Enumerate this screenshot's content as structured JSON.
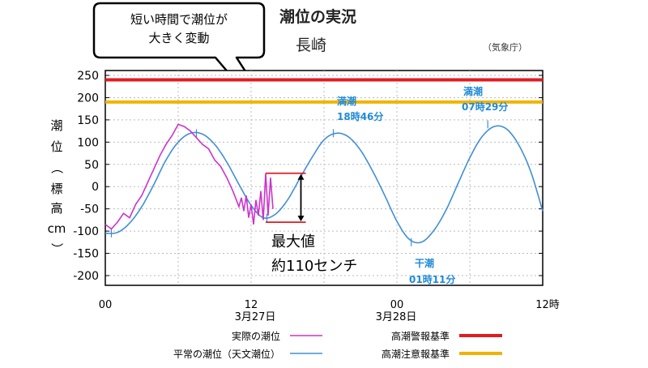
{
  "colors": {
    "actual": "#cc33cc",
    "normal": "#3f8fd6",
    "warning": "#e11b22",
    "caution": "#f0b400",
    "annot_blue": "#1f8ad6",
    "range_red": "#e11b22"
  },
  "callout": {
    "line1": "短い時間で潮位が",
    "line2": "大きく変動"
  },
  "title": "潮位の実況",
  "subtitle": "長崎",
  "source": "（気象庁）",
  "ylabel_chars": [
    "潮",
    "位",
    "（",
    "標",
    "高",
    "cm",
    "）"
  ],
  "x_tick_labels": [
    "00",
    "12",
    "00",
    "12時"
  ],
  "date_labels": [
    "3月27日",
    "3月28日"
  ],
  "annotations": {
    "high1_a": "満潮",
    "high1_b": "18時46分",
    "high2_a": "満潮",
    "high2_b": "07時29分",
    "low_a": "干潮",
    "low_b": "01時11分",
    "max_a": "最大値",
    "max_b": "約110センチ"
  },
  "legend": {
    "actual": "実際の潮位",
    "normal": "平常の潮位（天文潮位）",
    "warning": "高潮警報基準",
    "caution": "高潮注意報基準"
  },
  "chart_data": {
    "type": "line",
    "title": "潮位の実況",
    "subtitle": "長崎",
    "ylabel": "潮位（標高cm）",
    "xlim_hours": [
      0,
      36
    ],
    "ylim": [
      -200,
      250
    ],
    "y_ticks": [
      -200,
      -150,
      -100,
      -50,
      0,
      50,
      100,
      150,
      200,
      250
    ],
    "x_tick_hours": [
      0,
      12,
      24,
      36
    ],
    "grid": true,
    "thresholds": [
      {
        "name": "高潮警報基準",
        "value": 240
      },
      {
        "name": "高潮注意報基準",
        "value": 190
      }
    ],
    "series": [
      {
        "name": "平常の潮位（天文潮位）",
        "x": [
          0,
          1,
          2,
          3,
          4,
          5,
          6,
          7,
          8,
          9,
          10,
          11,
          12,
          13,
          14,
          15,
          16,
          17,
          18,
          19,
          20,
          21,
          22,
          23,
          24,
          25,
          26,
          27,
          28,
          29,
          30,
          31,
          32,
          33,
          34,
          35,
          36
        ],
        "values": [
          -105,
          -103,
          -82,
          -45,
          5,
          60,
          100,
          120,
          118,
          95,
          55,
          5,
          -42,
          -70,
          -62,
          -30,
          18,
          65,
          105,
          120,
          112,
          82,
          35,
          -20,
          -78,
          -118,
          -125,
          -100,
          -55,
          5,
          65,
          112,
          135,
          130,
          95,
          35,
          -55
        ]
      },
      {
        "name": "実際の潮位",
        "x": [
          0,
          0.5,
          1,
          1.5,
          2,
          2.5,
          3,
          3.5,
          4,
          4.5,
          5,
          5.5,
          6,
          6.5,
          7,
          7.5,
          8,
          8.5,
          9,
          9.5,
          10,
          10.5,
          11,
          11.2,
          11.4,
          11.6,
          11.8,
          12.0,
          12.2,
          12.4,
          12.6,
          12.8,
          13.0,
          13.2,
          13.4,
          13.6,
          13.8
        ],
        "values": [
          -85,
          -95,
          -80,
          -60,
          -70,
          -40,
          -20,
          10,
          40,
          70,
          95,
          115,
          140,
          135,
          125,
          110,
          95,
          85,
          60,
          45,
          20,
          -10,
          -45,
          -25,
          -55,
          -20,
          -70,
          -40,
          -85,
          -30,
          -65,
          -10,
          -75,
          30,
          -65,
          20,
          -50
        ]
      }
    ],
    "annotations": [
      {
        "text": "満潮 18時46分",
        "x": 18.77,
        "y": 120
      },
      {
        "text": "満潮 07時29分",
        "x": 31.48,
        "y": 140
      },
      {
        "text": "干潮 01時11分",
        "x": 25.18,
        "y": -125
      },
      {
        "text": "最大値 約110センチ",
        "range": [
          -80,
          30
        ]
      }
    ]
  }
}
